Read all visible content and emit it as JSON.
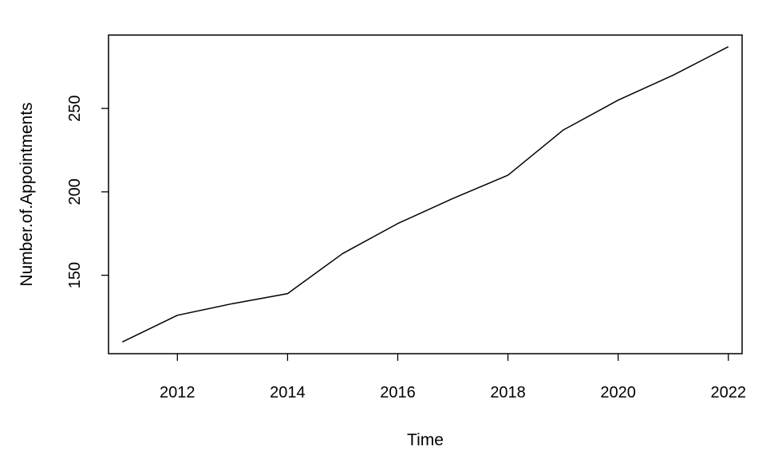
{
  "chart_data": {
    "type": "line",
    "title": "",
    "xlabel": "Time",
    "ylabel": "Number.of.Appointments",
    "x": [
      2011,
      2012,
      2013,
      2014,
      2015,
      2016,
      2017,
      2018,
      2019,
      2020,
      2021,
      2022
    ],
    "series": [
      {
        "values": [
          110,
          126,
          133,
          139,
          163,
          181,
          196,
          210,
          237,
          255,
          270,
          287
        ]
      }
    ],
    "xlim": [
      2010.75,
      2022.25
    ],
    "ylim": [
      103,
      294
    ],
    "xticks": [
      2012,
      2014,
      2016,
      2018,
      2020,
      2022
    ],
    "yticks": [
      150,
      200,
      250
    ],
    "grid": false,
    "legend": "none",
    "line_color": "#000000"
  }
}
